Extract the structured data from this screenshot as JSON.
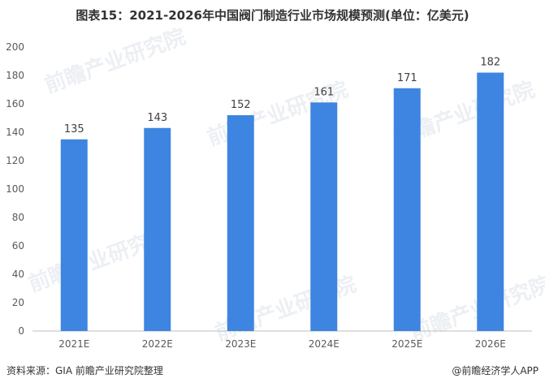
{
  "chart_data": {
    "type": "bar",
    "title": "图表15：2021-2026年中国阀门制造行业市场规模预测(单位：亿美元)",
    "categories": [
      "2021E",
      "2022E",
      "2023E",
      "2024E",
      "2025E",
      "2026E"
    ],
    "values": [
      135,
      143,
      152,
      161,
      171,
      182
    ],
    "ylim": [
      0,
      200
    ],
    "yticks": [
      0,
      20,
      40,
      60,
      80,
      100,
      120,
      140,
      160,
      180,
      200
    ],
    "xlabel": "",
    "ylabel": "",
    "grid": false,
    "bar_color": "#3d85e0"
  },
  "footer": {
    "source": "资料来源：GIA 前瞻产业研究院整理",
    "brand": "@前瞻经济学人APP"
  },
  "watermark": "前瞻产业研究院"
}
